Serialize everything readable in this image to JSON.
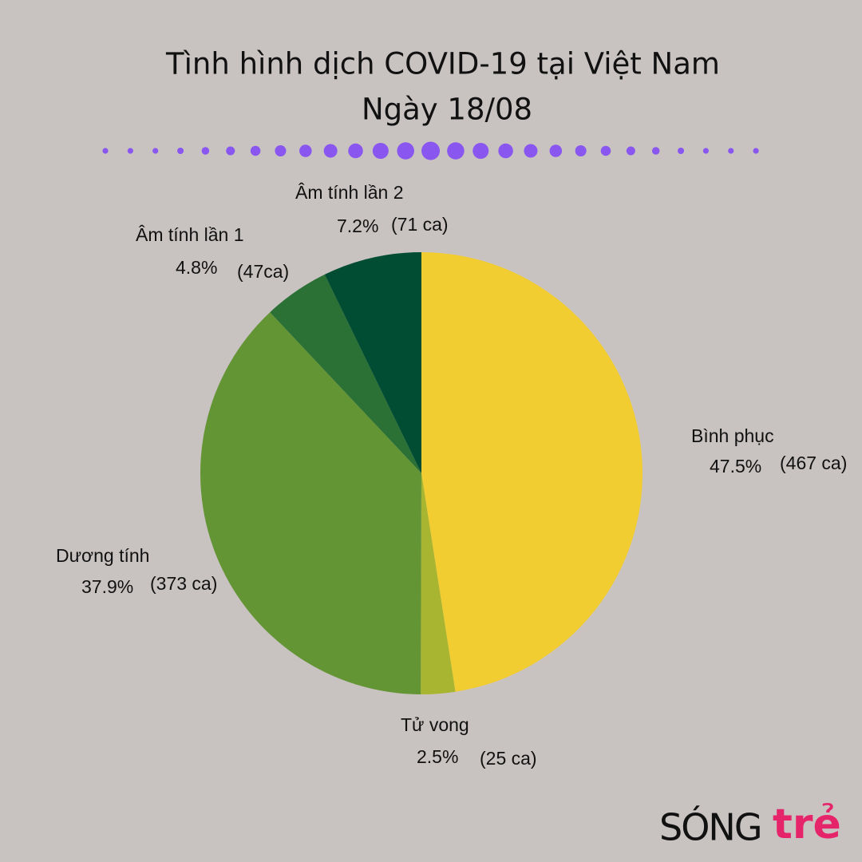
{
  "chart_data": {
    "type": "pie",
    "title": "Tình hình dịch COVID-19 tại Việt Nam",
    "subtitle": "Ngày 18/08",
    "categories": [
      "Bình phục",
      "Tử vong",
      "Dương tính",
      "Âm tính lần 1",
      "Âm tính lần 2"
    ],
    "values": [
      47.5,
      2.5,
      37.9,
      4.8,
      7.2
    ],
    "value_labels": [
      "47.5%",
      "2.5%",
      "37.9%",
      "4.8%",
      "7.2%"
    ],
    "count_labels": [
      "(467 ca)",
      "(25 ca)",
      "(373 ca)",
      "(47ca)",
      "(71 ca)"
    ],
    "colors": [
      "#f2cd32",
      "#a8b530",
      "#649535",
      "#2b7035",
      "#004d33"
    ]
  },
  "logo": {
    "left": "SÓNG",
    "right": "trẻ"
  }
}
